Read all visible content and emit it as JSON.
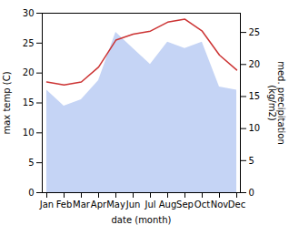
{
  "chart_data": {
    "type": "line",
    "categories": [
      "Jan",
      "Feb",
      "Mar",
      "Apr",
      "May",
      "Jun",
      "Jul",
      "Aug",
      "Sep",
      "Oct",
      "Nov",
      "Dec"
    ],
    "xlabel": "date (month)",
    "ylabel": "max temp (C)",
    "y2label": "med. precipitation\n(kg/m2)",
    "series": [
      {
        "type": "line",
        "color": "#cc3333",
        "values": [
          18.5,
          18.0,
          18.5,
          21.0,
          25.5,
          26.5,
          27.0,
          28.5,
          29.0,
          27.0,
          23.0,
          20.5
        ]
      },
      {
        "type": "area",
        "axis": "y2",
        "color": "#c5d4f5",
        "values": [
          16.0,
          13.5,
          14.5,
          17.5,
          25.0,
          22.5,
          20.0,
          23.5,
          22.5,
          23.5,
          16.5,
          16.0
        ]
      }
    ],
    "ylim": [
      0,
      30
    ],
    "yticks": [
      0,
      5,
      10,
      15,
      20,
      25,
      30
    ],
    "y2lim": [
      0,
      28
    ],
    "y2ticks": [
      0,
      5,
      10,
      15,
      20,
      25
    ],
    "grid": false
  }
}
